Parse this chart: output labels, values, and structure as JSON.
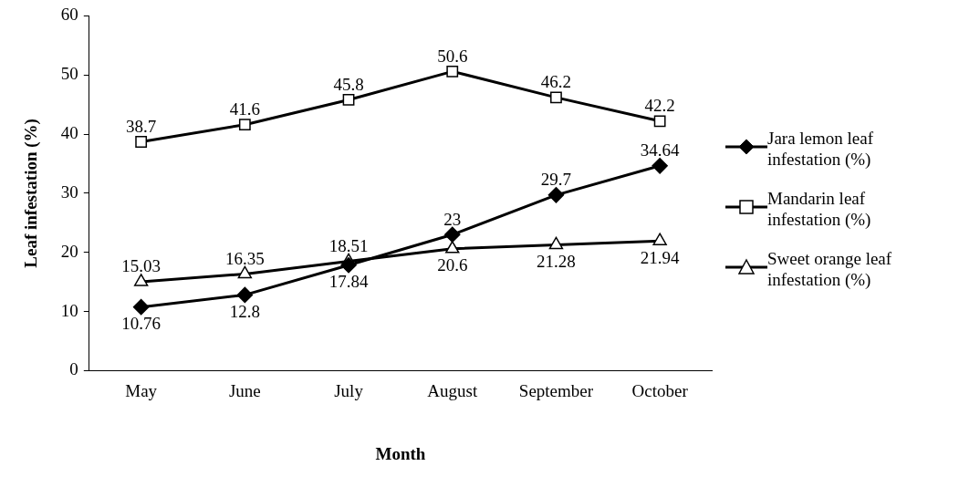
{
  "chart_data": {
    "type": "line",
    "xlabel": "Month",
    "ylabel": "Leaf infestation (%)",
    "categories": [
      "May",
      "June",
      "July",
      "August",
      "September",
      "October"
    ],
    "series": [
      {
        "name": "Jara lemon leaf infestation (%)",
        "color": "#000000",
        "marker": "diamond",
        "values": [
          10.76,
          12.8,
          17.84,
          23,
          29.7,
          34.64
        ]
      },
      {
        "name": "Mandarin  leaf infestation (%)",
        "color": "#000000",
        "marker": "square",
        "values": [
          38.7,
          41.6,
          45.8,
          50.6,
          46.2,
          42.2
        ]
      },
      {
        "name": "Sweet orange leaf infestation (%)",
        "color": "#000000",
        "marker": "triangle",
        "values": [
          15.03,
          16.35,
          18.51,
          20.6,
          21.28,
          21.94
        ]
      }
    ],
    "ylim": [
      0,
      60
    ],
    "yticks": [
      0,
      10,
      20,
      30,
      40,
      50,
      60
    ],
    "grid": false,
    "legend": "right",
    "data_labels": true
  }
}
